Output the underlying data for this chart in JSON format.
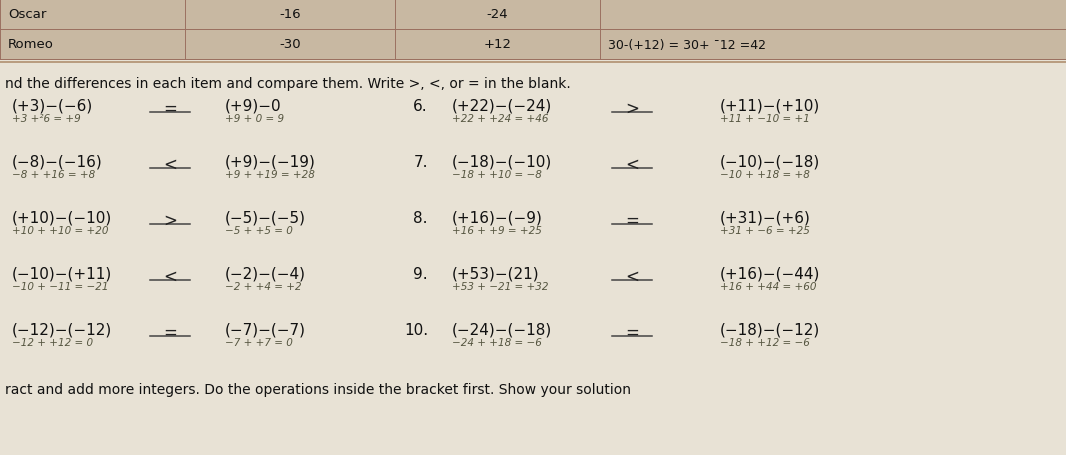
{
  "bg_color": "#d8cfc0",
  "paper_color": "#e8e2d5",
  "table": {
    "row1": {
      "label": "Oscar",
      "v1": "-16",
      "v2": "-24",
      "v3": ""
    },
    "row2": {
      "label": "Romeo",
      "v1": "-30",
      "v2": "+12",
      "v3": "30-(+12) = 30+ ¯12 =42"
    }
  },
  "header": "nd the differences in each item and compare them. Write >, <, or = in the blank.",
  "col0_exprs": [
    "(+3)−(−6)",
    "(−8)−(−16)",
    "(+10)−(−10)",
    "(−10)−(+11)",
    "(−12)−(−12)"
  ],
  "col0_works": [
    "+3 +²6 = +9",
    "−8 + +16 = +8",
    "+10 + +10 = +20",
    "−10 + −11 = −21",
    "−12 + +12 = 0"
  ],
  "col0_signs": [
    "=",
    "<",
    ">",
    "<",
    "="
  ],
  "col1_exprs": [
    "(+9)−0",
    "(+9)−(−19)",
    "(−5)−(−5)",
    "(−2)−(−4)",
    "(−7)−(−7)"
  ],
  "col1_works": [
    "+9 + 0 = 9",
    "+9 + +19 = +28",
    "−5 + +5 = 0",
    "−2 + +4 = +2",
    "−7 + +7 = 0"
  ],
  "num_labels": [
    "6.",
    "7.",
    "8.",
    "9.",
    "10."
  ],
  "col2_exprs": [
    "(+22)−(−24)",
    "(−18)−(−10)",
    "(+16)−(−9)",
    "(+53)−(21)",
    "(−24)−(−18)"
  ],
  "col2_works": [
    "+22 + +24 = +46",
    "−18 + +10 = −8",
    "+16 + +9 = +25",
    "+53 + −21 = +32",
    "−24 + +18 = −6"
  ],
  "col2_signs": [
    ">",
    "<",
    "=",
    "<",
    "="
  ],
  "col3_exprs": [
    "(+11)−(+10)",
    "(−10)−(−18)",
    "(+31)−(+6)",
    "(+16)−(−44)",
    "(−18)−(−12)"
  ],
  "col3_works": [
    "+11 + −10 = +1",
    "−10 + +18 = +8",
    "+31 + −6 = +25",
    "+16 + +44 = +60",
    "−18 + +12 = −6"
  ],
  "footer": "ract and add more integers. Do the operations inside the bracket first. Show your solution"
}
